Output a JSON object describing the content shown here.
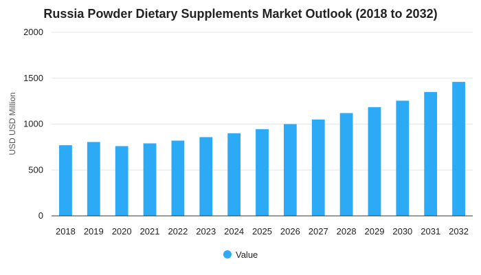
{
  "chart_data": {
    "type": "bar",
    "title": "Russia Powder Dietary Supplements Market Outlook (2018 to 2032)",
    "ylabel": "USD USD Million",
    "xlabel": "",
    "categories": [
      "2018",
      "2019",
      "2020",
      "2021",
      "2022",
      "2023",
      "2024",
      "2025",
      "2026",
      "2027",
      "2028",
      "2029",
      "2030",
      "2031",
      "2032"
    ],
    "series": [
      {
        "name": "Value",
        "values": [
          770,
          805,
          760,
          790,
          820,
          858,
          900,
          945,
          1000,
          1050,
          1120,
          1185,
          1255,
          1350,
          1460
        ]
      }
    ],
    "ylim": [
      0,
      2000
    ],
    "yticks": [
      0,
      500,
      1000,
      1500,
      2000
    ],
    "grid": true,
    "legend_position": "bottom",
    "colors": {
      "bar": "#2daaf5",
      "grid": "#e6e6e6",
      "axis": "#333333"
    }
  }
}
